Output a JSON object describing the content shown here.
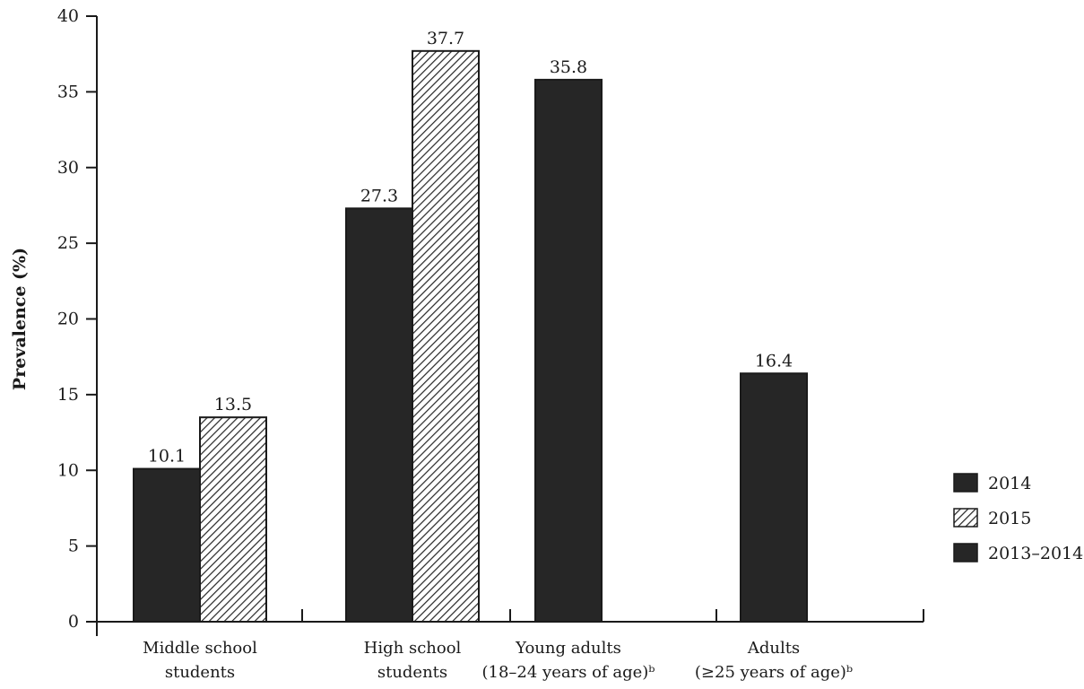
{
  "chart_data": {
    "type": "bar",
    "title": "",
    "ylabel": "Prevalence (%)",
    "xlabel": "",
    "ylim": [
      0,
      40
    ],
    "yticks": [
      0,
      5,
      10,
      15,
      20,
      25,
      30,
      35,
      40
    ],
    "categories": [
      [
        "Middle school",
        "students"
      ],
      [
        "High school",
        "students"
      ],
      [
        "Young adults",
        "(18–24 years of age)ᵇ"
      ],
      [
        "Adults",
        "(≥25 years of age)ᵇ"
      ]
    ],
    "series": [
      {
        "name": "2014",
        "pattern": "solid",
        "color": "#262626",
        "values": [
          10.1,
          27.3,
          null,
          null
        ]
      },
      {
        "name": "2015",
        "pattern": "hatch",
        "color": "#262626",
        "values": [
          13.5,
          37.7,
          null,
          null
        ]
      },
      {
        "name": "2013–2014",
        "pattern": "solid",
        "color": "#262626",
        "values": [
          null,
          null,
          35.8,
          16.4
        ]
      }
    ],
    "grid": false,
    "legend_position": "right"
  }
}
